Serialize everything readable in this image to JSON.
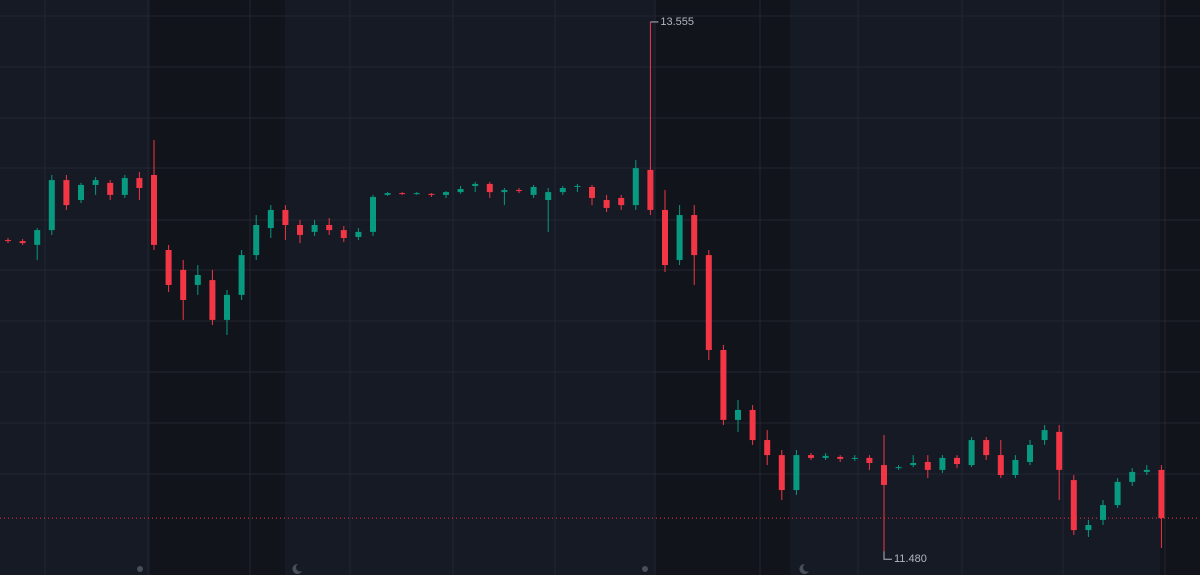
{
  "chart_data": {
    "type": "candlestick",
    "ylim": [
      11.387,
      13.641
    ],
    "up_color": "#089981",
    "down_color": "#f23645",
    "open": [
      12.7,
      12.696,
      12.681,
      12.739,
      12.935,
      12.857,
      12.916,
      12.924,
      12.877,
      12.943,
      12.955,
      12.661,
      12.583,
      12.524,
      12.543,
      12.387,
      12.485,
      12.641,
      12.747,
      12.818,
      12.759,
      12.732,
      12.759,
      12.739,
      12.712,
      12.732,
      12.877,
      12.884,
      12.881,
      12.881,
      12.877,
      12.888,
      12.912,
      12.92,
      12.888,
      12.896,
      12.877,
      12.857,
      12.888,
      12.908,
      12.908,
      12.857,
      12.865,
      12.837,
      12.975,
      12.818,
      12.622,
      12.798,
      12.641,
      12.269,
      11.995,
      12.034,
      11.916,
      11.857,
      11.72,
      11.857,
      11.846,
      11.85,
      11.842,
      11.846,
      11.818,
      11.806,
      11.818,
      11.83,
      11.799,
      11.846,
      11.818,
      11.916,
      11.857,
      11.779,
      11.83,
      11.916,
      11.948,
      11.759,
      11.563,
      11.603,
      11.661,
      11.752,
      11.791,
      11.799
    ],
    "high": [
      12.708,
      12.704,
      12.747,
      12.955,
      12.955,
      12.924,
      12.947,
      12.935,
      12.955,
      12.967,
      13.092,
      12.681,
      12.622,
      12.602,
      12.583,
      12.504,
      12.661,
      12.798,
      12.837,
      12.837,
      12.779,
      12.779,
      12.786,
      12.755,
      12.747,
      12.877,
      12.888,
      12.888,
      12.888,
      12.884,
      12.892,
      12.912,
      12.928,
      12.928,
      12.904,
      12.904,
      12.916,
      12.904,
      12.912,
      12.92,
      12.916,
      12.877,
      12.877,
      13.014,
      13.555,
      12.896,
      12.837,
      12.837,
      12.661,
      12.289,
      12.073,
      12.053,
      11.955,
      11.877,
      11.877,
      11.865,
      11.865,
      11.857,
      11.857,
      11.857,
      11.936,
      11.818,
      11.857,
      11.857,
      11.857,
      11.857,
      11.928,
      11.928,
      11.916,
      11.857,
      11.916,
      11.975,
      11.975,
      11.779,
      11.603,
      11.681,
      11.767,
      11.806,
      11.818,
      11.818
    ],
    "low": [
      12.688,
      12.681,
      12.622,
      12.72,
      12.818,
      12.845,
      12.877,
      12.857,
      12.865,
      12.857,
      12.661,
      12.496,
      12.387,
      12.485,
      12.367,
      12.328,
      12.465,
      12.622,
      12.708,
      12.7,
      12.688,
      12.716,
      12.72,
      12.692,
      12.7,
      12.716,
      12.873,
      12.877,
      12.877,
      12.869,
      12.865,
      12.881,
      12.888,
      12.865,
      12.837,
      12.884,
      12.865,
      12.732,
      12.877,
      12.888,
      12.837,
      12.81,
      12.818,
      12.818,
      12.798,
      12.575,
      12.602,
      12.524,
      12.23,
      11.975,
      11.948,
      11.897,
      11.818,
      11.681,
      11.701,
      11.838,
      11.838,
      11.83,
      11.834,
      11.799,
      11.48,
      11.799,
      11.81,
      11.767,
      11.787,
      11.806,
      11.81,
      11.838,
      11.767,
      11.767,
      11.818,
      11.897,
      11.681,
      11.544,
      11.536,
      11.583,
      11.65,
      11.736,
      11.779,
      11.493
    ],
    "close": [
      12.696,
      12.688,
      12.739,
      12.935,
      12.837,
      12.916,
      12.935,
      12.877,
      12.943,
      12.904,
      12.681,
      12.524,
      12.465,
      12.563,
      12.387,
      12.485,
      12.641,
      12.759,
      12.818,
      12.759,
      12.72,
      12.759,
      12.739,
      12.708,
      12.732,
      12.869,
      12.884,
      12.881,
      12.884,
      12.877,
      12.888,
      12.9,
      12.92,
      12.888,
      12.896,
      12.892,
      12.908,
      12.888,
      12.904,
      12.912,
      12.865,
      12.826,
      12.837,
      12.982,
      12.818,
      12.602,
      12.798,
      12.641,
      12.269,
      11.995,
      12.034,
      11.916,
      11.857,
      11.72,
      11.857,
      11.846,
      11.854,
      11.842,
      11.846,
      11.826,
      11.74,
      11.81,
      11.826,
      11.799,
      11.846,
      11.822,
      11.916,
      11.857,
      11.779,
      11.838,
      11.897,
      11.955,
      11.799,
      11.563,
      11.583,
      11.661,
      11.752,
      11.791,
      11.799,
      11.61
    ],
    "price_line": 11.61,
    "annotations": [
      {
        "value": 13.555,
        "label": "13.555"
      },
      {
        "value": 11.48,
        "label": "11.480"
      }
    ]
  }
}
